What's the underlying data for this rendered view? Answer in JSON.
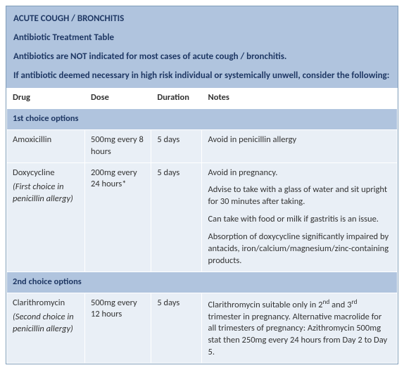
{
  "header": {
    "title": "ACUTE COUGH / BRONCHITIS",
    "subtitle": "Antibiotic Treatment Table",
    "line1": "Antibiotics are NOT indicated for most cases of acute cough / bronchitis.",
    "line2": "If antibiotic deemed necessary in high risk individual or systemically unwell, consider the following:"
  },
  "columns": {
    "drug": "Drug",
    "dose": "Dose",
    "duration": "Duration",
    "notes": "Notes"
  },
  "sections": {
    "first": "1st choice options",
    "second": "2nd choice options"
  },
  "rows": {
    "amoxicillin": {
      "drug": "Amoxicillin",
      "drug_sub": "",
      "dose": "500mg every 8 hours",
      "duration": "5 days",
      "notes": [
        "Avoid in penicillin allergy"
      ]
    },
    "doxycycline": {
      "drug": "Doxycycline",
      "drug_sub": "(First choice in penicillin allergy)",
      "dose": "200mg every 24 hours*",
      "duration": "5 days",
      "notes": [
        "Avoid in pregnancy.",
        "Advise to take with a glass of water and sit upright for 30 minutes after taking.",
        "Can take with food or milk if gastritis is an issue.",
        "Absorption of doxycycline significantly impaired by antacids, iron/calcium/magnesium/zinc-containing products."
      ]
    },
    "clarithromycin": {
      "drug": "Clarithromycin",
      "drug_sub": "(Second choice in penicillin allergy)",
      "dose": "500mg every 12 hours",
      "duration": "5 days",
      "notes_html": "Clarithromycin suitable only in 2<sup>nd</sup> and 3<sup>rd</sup> trimester in pregnancy. Alternative macrolide for all trimesters of pregnancy: Azithromycin 500mg stat then 250mg every 24 hours from Day 2 to Day 5."
    }
  }
}
